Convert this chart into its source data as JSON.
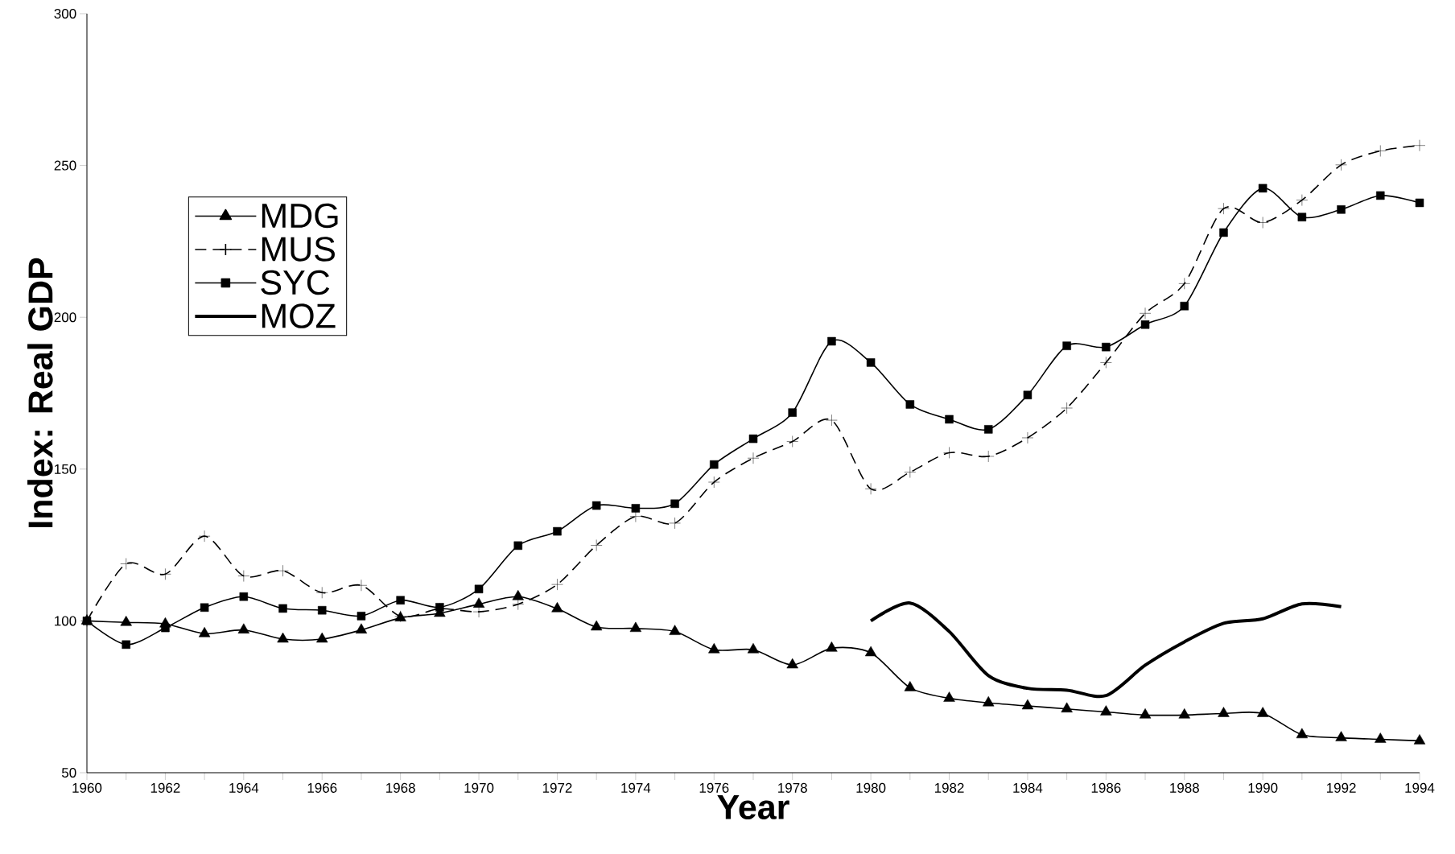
{
  "chart_data": {
    "type": "line",
    "xlabel": "Year",
    "ylabel": "Index: Real GDP",
    "x": [
      1960,
      1961,
      1962,
      1963,
      1964,
      1965,
      1966,
      1967,
      1968,
      1969,
      1970,
      1971,
      1972,
      1973,
      1974,
      1975,
      1976,
      1977,
      1978,
      1979,
      1980,
      1981,
      1982,
      1983,
      1984,
      1985,
      1986,
      1987,
      1988,
      1989,
      1990,
      1991,
      1992,
      1993,
      1994
    ],
    "series": [
      {
        "name": "MDG",
        "color": "#000000",
        "marker": "triangle",
        "line_style": "solid",
        "values": [
          100,
          99.5,
          99,
          95.8,
          97,
          94,
          94,
          97,
          101,
          102.5,
          105.5,
          108,
          104,
          98,
          97.5,
          96.5,
          90.5,
          90.5,
          85.5,
          91,
          89.5,
          78,
          74.5,
          73,
          72,
          71,
          70,
          69,
          69,
          69.5,
          69.5,
          62.5,
          61.5,
          61,
          60.5
        ]
      },
      {
        "name": "MUS",
        "color": "#000000",
        "marker": "cross",
        "line_style": "dashed",
        "values": [
          100,
          118.8,
          115.4,
          127.9,
          114.8,
          116.5,
          109.3,
          111.7,
          101.5,
          104,
          103,
          105.5,
          112,
          124.9,
          134.4,
          132.2,
          145.7,
          153.6,
          159.1,
          166.1,
          143.5,
          149,
          155.4,
          154.2,
          160.3,
          170.1,
          185.1,
          201.3,
          211.1,
          235.8,
          231.2,
          238.6,
          250.2,
          254.8,
          256.6
        ]
      },
      {
        "name": "SYC",
        "color": "#000000",
        "marker": "square",
        "line_style": "solid",
        "values": [
          100,
          92.2,
          97.7,
          104.4,
          108,
          104.1,
          103.5,
          101.6,
          106.8,
          104.5,
          110.5,
          124.8,
          129.5,
          138,
          137.1,
          138.6,
          151.5,
          160,
          168.6,
          192.1,
          185.1,
          171.3,
          166.4,
          163.1,
          174.4,
          190.6,
          190.2,
          197.6,
          203.7,
          227.9,
          242.5,
          233,
          235.5,
          240.1,
          237.7
        ]
      },
      {
        "name": "MOZ",
        "color": "#000000",
        "marker": "none",
        "line_style": "solid",
        "values": [
          null,
          null,
          null,
          null,
          null,
          null,
          null,
          null,
          null,
          null,
          null,
          null,
          null,
          null,
          null,
          null,
          null,
          null,
          null,
          null,
          100,
          105.9,
          96.5,
          82,
          77.8,
          77.2,
          75.4,
          85.4,
          93.1,
          99.2,
          100.7,
          105.6,
          104.7,
          null,
          null
        ]
      }
    ],
    "xlim": [
      1960,
      1994
    ],
    "ylim": [
      50,
      300
    ],
    "xticks": [
      1960,
      {
        "value": 1961,
        "label": null
      },
      1962,
      {
        "value": 1963,
        "label": null
      },
      1964,
      {
        "value": 1965,
        "label": null
      },
      1966,
      {
        "value": 1967,
        "label": null
      },
      1968,
      {
        "value": 1969,
        "label": null
      },
      1970,
      {
        "value": 1971,
        "label": null
      },
      1972,
      {
        "value": 1973,
        "label": null
      },
      1974,
      {
        "value": 1975,
        "label": null
      },
      1976,
      {
        "value": 1977,
        "label": null
      },
      1978,
      {
        "value": 1979,
        "label": null
      },
      1980,
      {
        "value": 1981,
        "label": null
      },
      1982,
      {
        "value": 1983,
        "label": null
      },
      1984,
      {
        "value": 1985,
        "label": null
      },
      1986,
      {
        "value": 1987,
        "label": null
      },
      1988,
      {
        "value": 1989,
        "label": null
      },
      1990,
      {
        "value": 1991,
        "label": null
      },
      1992,
      {
        "value": 1993,
        "label": null
      },
      1994
    ],
    "yticks": [
      50,
      100,
      150,
      200,
      250,
      300
    ],
    "legend": "left",
    "grid": false
  }
}
